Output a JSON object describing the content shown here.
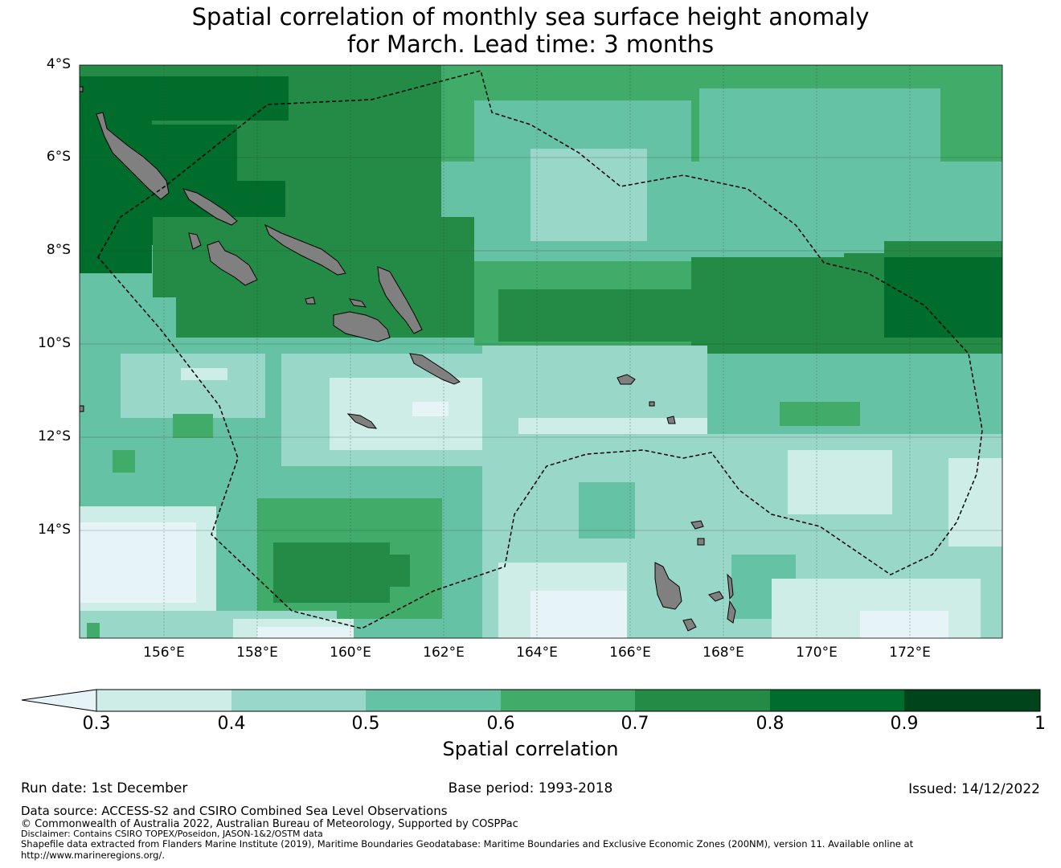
{
  "title": {
    "line1": "Spatial correlation of monthly sea surface height anomaly",
    "line2": "for March. Lead time: 3 months"
  },
  "map": {
    "lat_labels": [
      "4°S",
      "6°S",
      "8°S",
      "10°S",
      "12°S",
      "14°S"
    ],
    "lon_labels": [
      "156°E",
      "158°E",
      "160°E",
      "162°E",
      "164°E",
      "166°E",
      "168°E",
      "170°E",
      "172°E"
    ],
    "extent": {
      "lon": [
        154.2,
        174.0
      ],
      "lat": [
        -16.3,
        -4.0
      ]
    },
    "colors": {
      "land": "#808080",
      "lt_0.3": "#e6f4f8",
      "0.3_0.4": "#cdede6",
      "0.4_0.5": "#99d8c8",
      "0.5_0.6": "#66c2a4",
      "0.6_0.7": "#41ab6a",
      "0.7_0.8": "#238b45",
      "0.8_0.9": "#006d2c",
      "0.9_1": "#00441b"
    }
  },
  "colorbar": {
    "ticks": [
      "0.3",
      "0.4",
      "0.5",
      "0.6",
      "0.7",
      "0.8",
      "0.9",
      "1"
    ],
    "label": "Spatial correlation"
  },
  "footer": {
    "run_date": "Run date: 1st December",
    "base_period": "Base period: 1993-2018",
    "issued": "Issued: 14/12/2022",
    "data_source": "Data source: ACCESS-S2 and CSIRO Combined Sea Level Observations",
    "copyright": "© Commonwealth of Australia 2022, Australian Bureau of Meteorology, Supported by COSPPac",
    "disclaimer": "Disclaimer: Contains CSIRO TOPEX/Poseidon, JASON-1&2/OSTM data",
    "shapefile": "Shapefile data extracted from Flanders Marine Institute (2019), Maritime Boundaries Geodatabase: Maritime Boundaries and Exclusive Economic Zones (200NM), version 11. Available online at",
    "url": "http://www.marineregions.org/."
  }
}
